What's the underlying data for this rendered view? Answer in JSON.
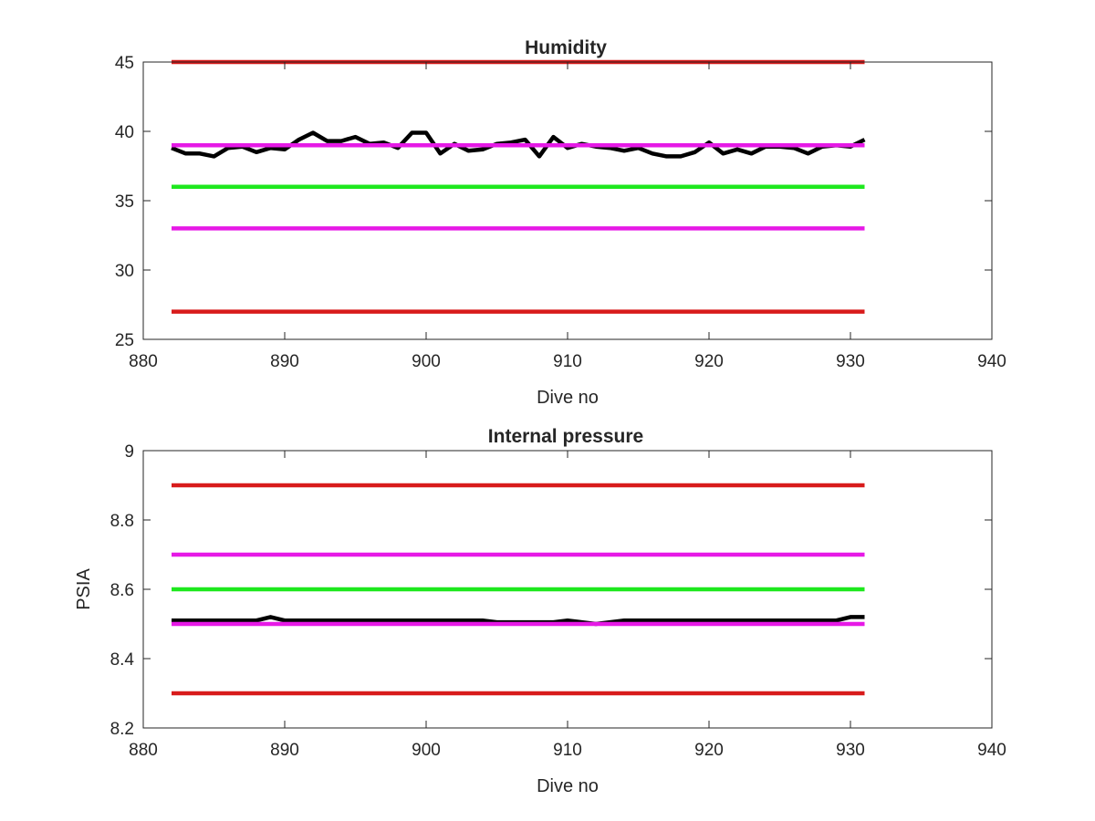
{
  "chart_data": [
    {
      "type": "line",
      "title": "Humidity",
      "xlabel": "Dive no",
      "ylabel": "",
      "xlim": [
        880,
        940
      ],
      "ylim": [
        25,
        45
      ],
      "xticks": [
        880,
        890,
        900,
        910,
        920,
        930,
        940
      ],
      "yticks": [
        25,
        30,
        35,
        40,
        45
      ],
      "xtick_labels": [
        "880",
        "890",
        "900",
        "910",
        "920",
        "930",
        "940"
      ],
      "ytick_labels": [
        "25",
        "30",
        "35",
        "40",
        "45"
      ],
      "grid": false,
      "legend": "none",
      "series": [
        {
          "color": "#000000",
          "x": [
            882,
            883,
            884,
            885,
            886,
            887,
            888,
            889,
            890,
            891,
            892,
            893,
            894,
            895,
            896,
            897,
            898,
            899,
            900,
            901,
            902,
            903,
            904,
            905,
            906,
            907,
            908,
            909,
            910,
            911,
            912,
            913,
            914,
            915,
            916,
            917,
            918,
            919,
            920,
            921,
            922,
            923,
            924,
            925,
            926,
            927,
            928,
            929,
            930,
            931
          ],
          "y": [
            38.8,
            38.4,
            38.4,
            38.2,
            38.8,
            38.9,
            38.5,
            38.8,
            38.7,
            39.4,
            39.9,
            39.3,
            39.3,
            39.6,
            39.1,
            39.2,
            38.8,
            39.9,
            39.9,
            38.4,
            39.1,
            38.6,
            38.7,
            39.1,
            39.2,
            39.4,
            38.2,
            39.6,
            38.8,
            39.1,
            38.9,
            38.8,
            38.6,
            38.8,
            38.4,
            38.2,
            38.2,
            38.5,
            39.2,
            38.4,
            38.7,
            38.4,
            38.9,
            38.9,
            38.8,
            38.4,
            38.9,
            39.0,
            38.9,
            39.4
          ]
        },
        {
          "color": "#D81B1B",
          "x": [
            882,
            931
          ],
          "y": [
            45,
            45
          ]
        },
        {
          "color": "#E619E6",
          "x": [
            882,
            931
          ],
          "y": [
            39,
            39
          ]
        },
        {
          "color": "#1EE81E",
          "x": [
            882,
            931
          ],
          "y": [
            36,
            36
          ]
        },
        {
          "color": "#E619E6",
          "x": [
            882,
            931
          ],
          "y": [
            33,
            33
          ]
        },
        {
          "color": "#D81B1B",
          "x": [
            882,
            931
          ],
          "y": [
            27,
            27
          ]
        }
      ]
    },
    {
      "type": "line",
      "title": "Internal pressure",
      "xlabel": "Dive no",
      "ylabel": "PSIA",
      "xlim": [
        880,
        940
      ],
      "ylim": [
        8.2,
        9
      ],
      "xticks": [
        880,
        890,
        900,
        910,
        920,
        930,
        940
      ],
      "yticks": [
        8.2,
        8.4,
        8.6,
        8.8,
        9
      ],
      "xtick_labels": [
        "880",
        "890",
        "900",
        "910",
        "920",
        "930",
        "940"
      ],
      "ytick_labels": [
        "8.2",
        "8.4",
        "8.6",
        "8.8",
        "9"
      ],
      "grid": false,
      "legend": "none",
      "series": [
        {
          "color": "#000000",
          "x": [
            882,
            883,
            884,
            885,
            886,
            887,
            888,
            889,
            890,
            891,
            892,
            893,
            894,
            895,
            896,
            897,
            898,
            899,
            900,
            901,
            902,
            903,
            904,
            905,
            906,
            907,
            908,
            909,
            910,
            911,
            912,
            913,
            914,
            915,
            916,
            917,
            918,
            919,
            920,
            921,
            922,
            923,
            924,
            925,
            926,
            927,
            928,
            929,
            930,
            931
          ],
          "y": [
            8.51,
            8.51,
            8.51,
            8.51,
            8.51,
            8.51,
            8.51,
            8.52,
            8.51,
            8.51,
            8.51,
            8.51,
            8.51,
            8.51,
            8.51,
            8.51,
            8.51,
            8.51,
            8.51,
            8.51,
            8.51,
            8.51,
            8.51,
            8.505,
            8.505,
            8.505,
            8.505,
            8.505,
            8.51,
            8.505,
            8.5,
            8.505,
            8.51,
            8.51,
            8.51,
            8.51,
            8.51,
            8.51,
            8.51,
            8.51,
            8.51,
            8.51,
            8.51,
            8.51,
            8.51,
            8.51,
            8.51,
            8.51,
            8.52,
            8.52
          ]
        },
        {
          "color": "#D81B1B",
          "x": [
            882,
            931
          ],
          "y": [
            8.9,
            8.9
          ]
        },
        {
          "color": "#E619E6",
          "x": [
            882,
            931
          ],
          "y": [
            8.7,
            8.7
          ]
        },
        {
          "color": "#1EE81E",
          "x": [
            882,
            931
          ],
          "y": [
            8.6,
            8.6
          ]
        },
        {
          "color": "#E619E6",
          "x": [
            882,
            931
          ],
          "y": [
            8.5,
            8.5
          ]
        },
        {
          "color": "#D81B1B",
          "x": [
            882,
            931
          ],
          "y": [
            8.3,
            8.3
          ]
        }
      ]
    }
  ]
}
